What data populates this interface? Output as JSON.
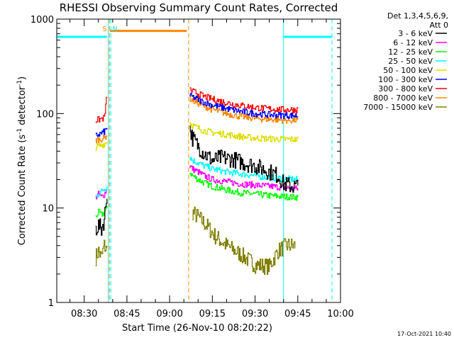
{
  "chart_data": {
    "type": "line",
    "title": "RHESSI Observing Summary Count Rates, Corrected",
    "xlabel": "Start Time (26-Nov-10 08:20:22)",
    "ylabel": "Corrected Count Rate (s⁻¹ detector⁻¹)",
    "ylabel_main": "Corrected Count Rate (s",
    "ylabel_mid": " detector",
    "ylabel_sup": "-1",
    "ylabel_close": ")",
    "yscale": "log",
    "ylim": [
      1,
      1000
    ],
    "xlim": [
      "08:20:22",
      "10:00:00"
    ],
    "x_ticks": [
      "08:30",
      "08:45",
      "09:00",
      "09:15",
      "09:30",
      "09:45",
      "10:00"
    ],
    "y_ticks": [
      "1",
      "10",
      "100",
      "1000"
    ],
    "legend": {
      "placement": "right",
      "header": [
        "Det 1,3,4,5,6,9,",
        "Att 0"
      ]
    },
    "series": [
      {
        "name": "3 - 6 keV",
        "color": "#000000",
        "segments": [
          {
            "x": [
              "08:34",
              "08:35",
              "08:36",
              "08:37",
              "08:38"
            ],
            "y": [
              6,
              6.5,
              6,
              7.5,
              15
            ]
          },
          {
            "x": [
              "09:07",
              "09:08",
              "09:10",
              "09:12",
              "09:15",
              "09:18",
              "09:22",
              "09:26",
              "09:30",
              "09:34",
              "09:38",
              "09:40",
              "09:43",
              "09:45"
            ],
            "y": [
              70,
              55,
              45,
              38,
              32,
              34,
              33,
              30,
              28,
              25,
              22,
              18,
              17,
              17
            ]
          }
        ]
      },
      {
        "name": "6 - 12 keV",
        "color": "#ff00ff",
        "segments": [
          {
            "x": [
              "08:34",
              "08:35",
              "08:36",
              "08:37",
              "08:38"
            ],
            "y": [
              13,
              14,
              13,
              14,
              16
            ]
          },
          {
            "x": [
              "09:07",
              "09:08",
              "09:10",
              "09:12",
              "09:15",
              "09:20",
              "09:25",
              "09:30",
              "09:35",
              "09:40",
              "09:45"
            ],
            "y": [
              28,
              26,
              24,
              22,
              20,
              19,
              18,
              17.5,
              17,
              16.5,
              16
            ]
          }
        ]
      },
      {
        "name": "12 - 25 keV",
        "color": "#00ff00",
        "segments": [
          {
            "x": [
              "08:34",
              "08:35",
              "08:36",
              "08:37",
              "08:38"
            ],
            "y": [
              8,
              9,
              8.5,
              9,
              10
            ]
          },
          {
            "x": [
              "09:07",
              "09:08",
              "09:10",
              "09:12",
              "09:15",
              "09:20",
              "09:25",
              "09:30",
              "09:35",
              "09:40",
              "09:45"
            ],
            "y": [
              24,
              22,
              20,
              18.5,
              17,
              15.5,
              14.5,
              14,
              13.5,
              13.2,
              13
            ]
          }
        ]
      },
      {
        "name": "25 - 50 keV",
        "color": "#00ffff",
        "segments": [
          {
            "x": [
              "08:34",
              "08:35",
              "08:36",
              "08:37",
              "08:38"
            ],
            "y": [
              13,
              14,
              15,
              16,
              17
            ]
          },
          {
            "x": [
              "09:07",
              "09:08",
              "09:10",
              "09:12",
              "09:15",
              "09:20",
              "09:25",
              "09:30",
              "09:35",
              "09:40",
              "09:45"
            ],
            "y": [
              35,
              32,
              30,
              28,
              26,
              24,
              23,
              22,
              21,
              20.5,
              20
            ]
          }
        ]
      },
      {
        "name": "50 - 100 keV",
        "color": "#dddd00",
        "segments": [
          {
            "x": [
              "08:34",
              "08:35",
              "08:36",
              "08:37",
              "08:38"
            ],
            "y": [
              44,
              45,
              46,
              48,
              50
            ]
          },
          {
            "x": [
              "09:07",
              "09:08",
              "09:10",
              "09:12",
              "09:15",
              "09:20",
              "09:25",
              "09:30",
              "09:35",
              "09:40",
              "09:45"
            ],
            "y": [
              80,
              75,
              70,
              66,
              63,
              60,
              57,
              55,
              54,
              53.5,
              53
            ]
          }
        ]
      },
      {
        "name": "100 - 300 keV",
        "color": "#0000ff",
        "segments": [
          {
            "x": [
              "08:34",
              "08:35",
              "08:36",
              "08:37",
              "08:38"
            ],
            "y": [
              58,
              60,
              62,
              64,
              70
            ]
          },
          {
            "x": [
              "09:07",
              "09:08",
              "09:10",
              "09:12",
              "09:15",
              "09:20",
              "09:25",
              "09:30",
              "09:35",
              "09:40",
              "09:45"
            ],
            "y": [
              155,
              150,
              140,
              132,
              123,
              113,
              105,
              100,
              97,
              96,
              95
            ]
          }
        ]
      },
      {
        "name": "300 - 800 keV",
        "color": "#ff0000",
        "segments": [
          {
            "x": [
              "08:34",
              "08:35",
              "08:36",
              "08:37",
              "08:38"
            ],
            "y": [
              85,
              86,
              88,
              90,
              160
            ]
          },
          {
            "x": [
              "09:07",
              "09:08",
              "09:10",
              "09:12",
              "09:15",
              "09:20",
              "09:25",
              "09:30",
              "09:35",
              "09:40",
              "09:45"
            ],
            "y": [
              180,
              172,
              162,
              152,
              142,
              130,
              122,
              116,
              112,
              110,
              110
            ]
          }
        ]
      },
      {
        "name": "800 - 7000 keV",
        "color": "#ff8800",
        "segments": [
          {
            "x": [
              "08:34",
              "08:35",
              "08:36",
              "08:37",
              "08:38"
            ],
            "y": [
              52,
              53,
              54,
              55,
              60
            ]
          },
          {
            "x": [
              "09:07",
              "09:08",
              "09:10",
              "09:12",
              "09:15",
              "09:20",
              "09:25",
              "09:30",
              "09:35",
              "09:40",
              "09:45"
            ],
            "y": [
              145,
              138,
              128,
              120,
              110,
              100,
              93,
              89,
              87,
              85,
              85
            ]
          }
        ]
      },
      {
        "name": "7000 - 15000 keV",
        "color": "#808000",
        "segments": [
          {
            "x": [
              "08:34",
              "08:35",
              "08:36",
              "08:37",
              "08:38"
            ],
            "y": [
              3,
              3.5,
              3,
              4,
              3.5
            ]
          },
          {
            "x": [
              "09:08",
              "09:10",
              "09:13",
              "09:16",
              "09:20",
              "09:25",
              "09:30",
              "09:35",
              "09:38",
              "09:41",
              "09:44"
            ],
            "y": [
              9,
              8,
              6.5,
              5,
              4,
              3.2,
              2.5,
              2.4,
              3.5,
              4,
              4
            ]
          }
        ]
      }
    ],
    "annotations": [
      {
        "type": "bar",
        "color": "#00ffff",
        "y": 650,
        "x": [
          "08:20:22",
          "08:38"
        ]
      },
      {
        "type": "bar",
        "color": "#00ffff",
        "y": 650,
        "x": [
          "09:40",
          "09:57"
        ]
      },
      {
        "type": "bar",
        "color": "#ff8800",
        "y": 750,
        "x": [
          "08:39",
          "09:06"
        ]
      },
      {
        "type": "vline",
        "color": "#00ffff",
        "style": "solid",
        "x": "08:20:22"
      },
      {
        "type": "vline",
        "color": "#00ffff",
        "style": "solid",
        "x": "08:38:30"
      },
      {
        "type": "vline",
        "color": "#00ffff",
        "style": "solid",
        "x": "09:40"
      },
      {
        "type": "vline",
        "color": "#00ffff",
        "style": "dashed",
        "x": "08:39:20"
      },
      {
        "type": "vline",
        "color": "#00ffff",
        "style": "dashed",
        "x": "09:57"
      },
      {
        "type": "vline",
        "color": "#ff8800",
        "style": "dashed",
        "x": "08:38:50"
      },
      {
        "type": "vline",
        "color": "#ff8800",
        "style": "dashed",
        "x": "09:06:40"
      },
      {
        "type": "label",
        "text": "S",
        "color": "#ff8800",
        "x": "08:37:10"
      },
      {
        "type": "label",
        "text": "N",
        "color": "#00ffff",
        "x": "08:40:50"
      }
    ]
  },
  "footer": {
    "timestamp": "17-Oct-2021 10:40"
  }
}
